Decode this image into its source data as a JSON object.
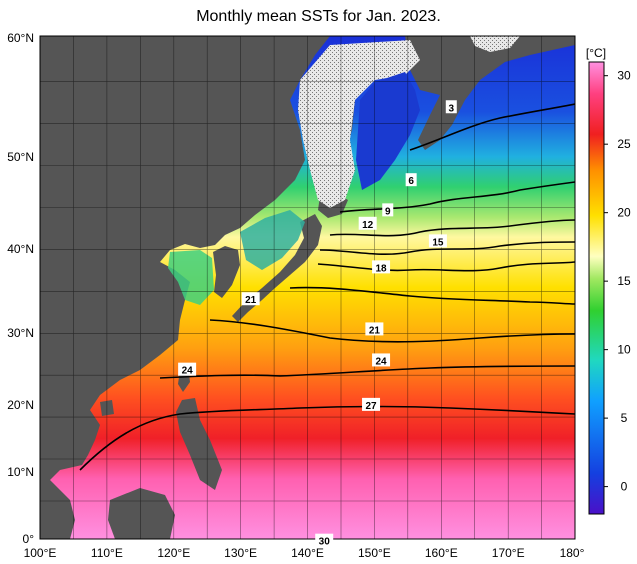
{
  "title": "Monthly mean SSTs for Jan. 2023.",
  "colorbar": {
    "unit_label": "[°C]",
    "min": -2,
    "max": 31,
    "tick_labels": [
      "30",
      "25",
      "20",
      "15",
      "10",
      "5",
      "0"
    ],
    "tick_values": [
      30,
      25,
      20,
      15,
      10,
      5,
      0
    ],
    "colors": [
      "#4a10c8",
      "#1440e0",
      "#10a0ff",
      "#20d8c0",
      "#30d030",
      "#a0e860",
      "#ffffc0",
      "#ffe000",
      "#ff9000",
      "#f02020",
      "#ff4080",
      "#ff90e0"
    ]
  },
  "map": {
    "lon_range": [
      100,
      180
    ],
    "lat_range": [
      0,
      60
    ],
    "lon_labels": [
      "100°E",
      "110°E",
      "120°E",
      "130°E",
      "140°E",
      "150°E",
      "160°E",
      "170°E",
      "180°"
    ],
    "lat_labels": [
      "0°",
      "10°N",
      "20°N",
      "30°N",
      "40°N",
      "50°N",
      "60°N"
    ],
    "land_color": "#555555",
    "ice_color": "#d8d8d8"
  },
  "isotherm_labels": [
    {
      "text": "3",
      "lon": 161.5,
      "lat": 51.5
    },
    {
      "text": "6",
      "lon": 155.5,
      "lat": 42.8
    },
    {
      "text": "9",
      "lon": 152,
      "lat": 39.2
    },
    {
      "text": "12",
      "lon": 149,
      "lat": 37.6
    },
    {
      "text": "15",
      "lon": 159.5,
      "lat": 35.5
    },
    {
      "text": "18",
      "lon": 151,
      "lat": 32.4
    },
    {
      "text": "21",
      "lon": 131.5,
      "lat": 28.6
    },
    {
      "text": "21",
      "lon": 150,
      "lat": 25.0
    },
    {
      "text": "24",
      "lon": 122,
      "lat": 20.2
    },
    {
      "text": "24",
      "lon": 151,
      "lat": 21.3
    },
    {
      "text": "27",
      "lon": 149.5,
      "lat": 16.0
    },
    {
      "text": "30",
      "lon": 142.5,
      "lat": -0.2
    }
  ]
}
